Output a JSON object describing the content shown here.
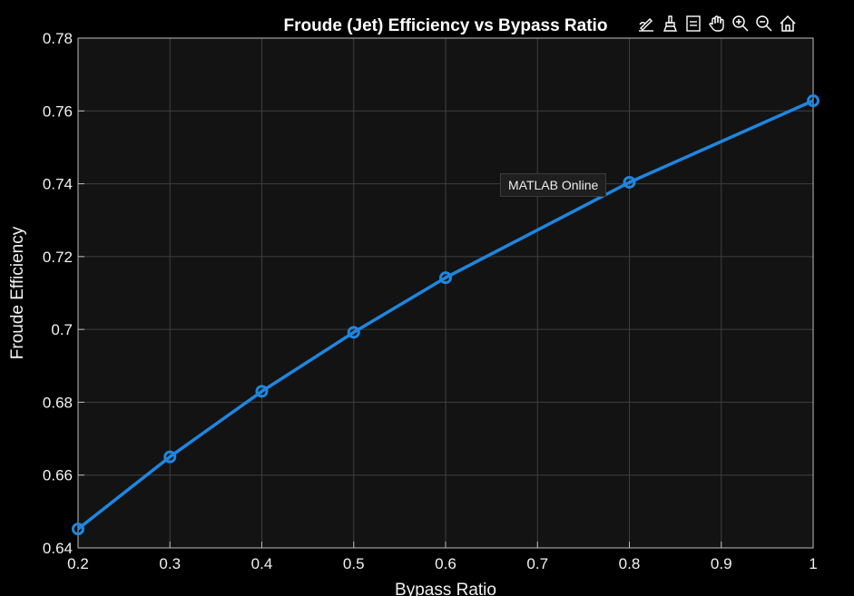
{
  "chart_data": {
    "type": "line",
    "title": "Froude (Jet) Efficiency vs Bypass Ratio",
    "xlabel": "Bypass Ratio",
    "ylabel": "Froude Efficiency",
    "xlim": [
      0.2,
      1.0
    ],
    "ylim": [
      0.64,
      0.78
    ],
    "xticks": [
      "0.2",
      "0.3",
      "0.4",
      "0.5",
      "0.6",
      "0.7",
      "0.8",
      "0.9",
      "1"
    ],
    "yticks": [
      "0.64",
      "0.66",
      "0.68",
      "0.7",
      "0.72",
      "0.74",
      "0.76",
      "0.78"
    ],
    "grid": true,
    "background": "#131313",
    "series": [
      {
        "color": "#1f86e0",
        "marker": "circle",
        "x": [
          0.2,
          0.3,
          0.4,
          0.5,
          0.6,
          0.8,
          1.0
        ],
        "y": [
          0.6452,
          0.665,
          0.683,
          0.6992,
          0.7142,
          0.7404,
          0.7628
        ]
      }
    ]
  },
  "tooltip": {
    "text": "MATLAB Online"
  },
  "toolbar": {
    "tools": [
      "edit-plot-icon",
      "brush-icon",
      "data-tips-icon",
      "pan-icon",
      "zoom-in-icon",
      "zoom-out-icon",
      "home-icon"
    ]
  }
}
